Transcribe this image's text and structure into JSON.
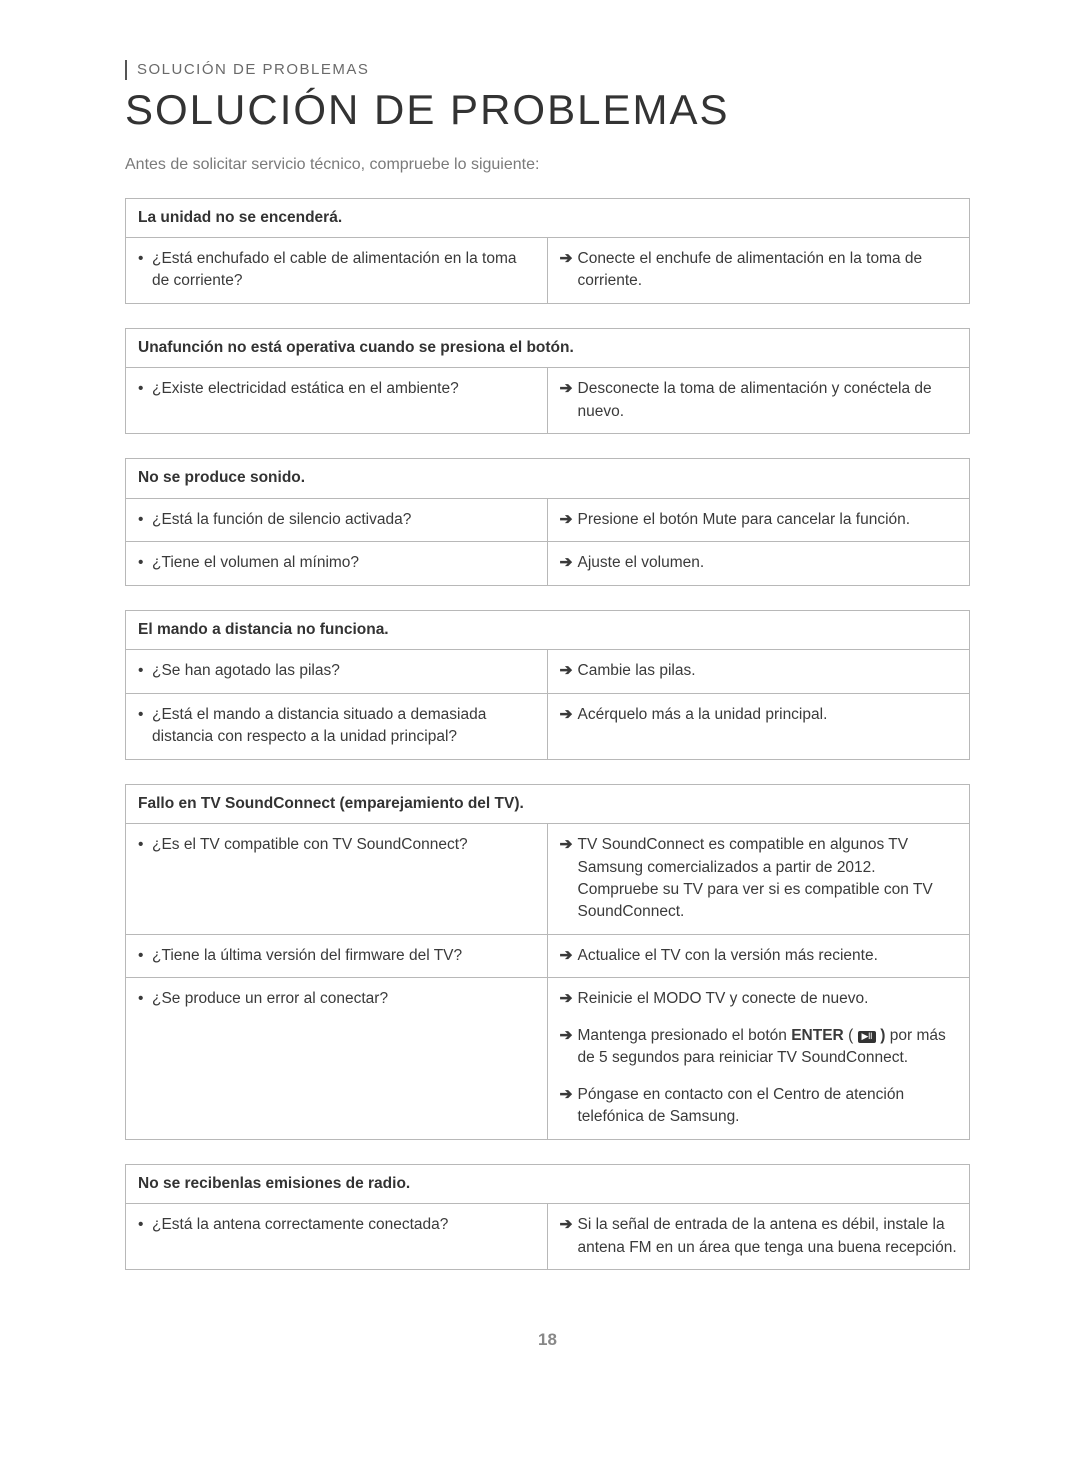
{
  "breadcrumb": "SOLUCIÓN DE PROBLEMAS",
  "title": "SOLUCIÓN DE PROBLEMAS",
  "intro": "Antes de solicitar servicio técnico, compruebe lo siguiente:",
  "page_number": "18",
  "colors": {
    "border": "#b8b8b8",
    "text": "#3a3a3a",
    "muted": "#7a7a7a"
  },
  "blocks": [
    {
      "header": "La unidad no se encenderá.",
      "rows": [
        {
          "questions": [
            "¿Está enchufado el cable de alimentación en la toma de corriente?"
          ],
          "answers": [
            {
              "type": "plain",
              "text": "Conecte el enchufe de alimentación en la toma de corriente."
            }
          ]
        }
      ]
    },
    {
      "header": "Unafunción no está operativa cuando se presiona el botón.",
      "rows": [
        {
          "questions": [
            "¿Existe electricidad estática en el ambiente?"
          ],
          "answers": [
            {
              "type": "plain",
              "text": "Desconecte la toma de alimentación y conéctela de nuevo."
            }
          ]
        }
      ]
    },
    {
      "header": "No se produce sonido.",
      "rows": [
        {
          "questions": [
            "¿Está la función de silencio activada?"
          ],
          "answers": [
            {
              "type": "plain",
              "text": "Presione el botón Mute para cancelar la función."
            }
          ]
        },
        {
          "questions": [
            "¿Tiene el volumen al mínimo?"
          ],
          "answers": [
            {
              "type": "plain",
              "text": "Ajuste el volumen."
            }
          ]
        }
      ]
    },
    {
      "header": "El mando a distancia no funciona.",
      "rows": [
        {
          "questions": [
            "¿Se han agotado las pilas?"
          ],
          "answers": [
            {
              "type": "plain",
              "text": "Cambie las pilas."
            }
          ]
        },
        {
          "questions": [
            "¿Está el mando a distancia situado a demasiada distancia con respecto a la unidad principal?"
          ],
          "answers": [
            {
              "type": "plain",
              "text": "Acérquelo más a la unidad principal."
            }
          ]
        }
      ]
    },
    {
      "header": "Fallo en TV SoundConnect (emparejamiento del TV).",
      "rows": [
        {
          "questions": [
            "¿Es el TV compatible con TV SoundConnect?"
          ],
          "answers": [
            {
              "type": "plain",
              "text": "TV SoundConnect es compatible en algunos TV Samsung comercializados a partir de 2012. Compruebe su TV para ver si es compatible con TV SoundConnect."
            }
          ]
        },
        {
          "questions": [
            "¿Tiene la última versión del firmware del TV?"
          ],
          "answers": [
            {
              "type": "plain",
              "text": "Actualice el TV con la versión más reciente."
            }
          ]
        },
        {
          "questions": [
            "¿Se produce un error al conectar?"
          ],
          "answers": [
            {
              "type": "plain",
              "text": "Reinicie el MODO TV y conecte de nuevo."
            },
            {
              "type": "enter",
              "pre": "Mantenga presionado el botón ",
              "bold": "ENTER",
              "post": " por más de 5 segundos para reiniciar TV SoundConnect."
            },
            {
              "type": "plain",
              "text": "Póngase en contacto con el Centro de atención telefónica de Samsung."
            }
          ]
        }
      ]
    },
    {
      "header": "No se recibenlas emisiones de radio.",
      "rows": [
        {
          "questions": [
            "¿Está la antena correctamente conectada?"
          ],
          "answers": [
            {
              "type": "plain",
              "text": "Si la señal de entrada de la antena es débil, instale la antena FM en un área que tenga una buena recepción."
            }
          ]
        }
      ]
    }
  ]
}
